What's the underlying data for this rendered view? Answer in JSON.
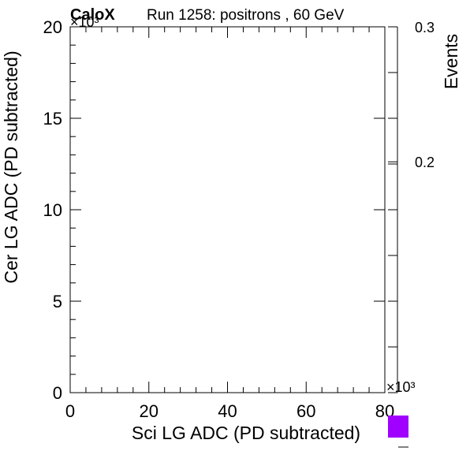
{
  "header": {
    "brand": "CaloX",
    "run_title": "Run 1258: positrons , 60 GeV"
  },
  "chart_data": {
    "type": "heatmap",
    "xlabel": "Sci LG ADC (PD subtracted)",
    "ylabel": "Cer LG ADC (PD subtracted)",
    "zlabel": "Events",
    "x_multiplier": "×10³",
    "y_multiplier": "×10³",
    "xlim": [
      0,
      80
    ],
    "ylim": [
      0,
      20
    ],
    "zlim": [
      0.1,
      0.3
    ],
    "x_ticks": [
      0,
      20,
      40,
      60,
      80
    ],
    "y_ticks": [
      0,
      5,
      10,
      15,
      20
    ],
    "z_ticks": [
      0.2,
      0.3
    ],
    "z_scale": "log",
    "grid": false,
    "palette_color": "#a000ff",
    "cells": []
  }
}
